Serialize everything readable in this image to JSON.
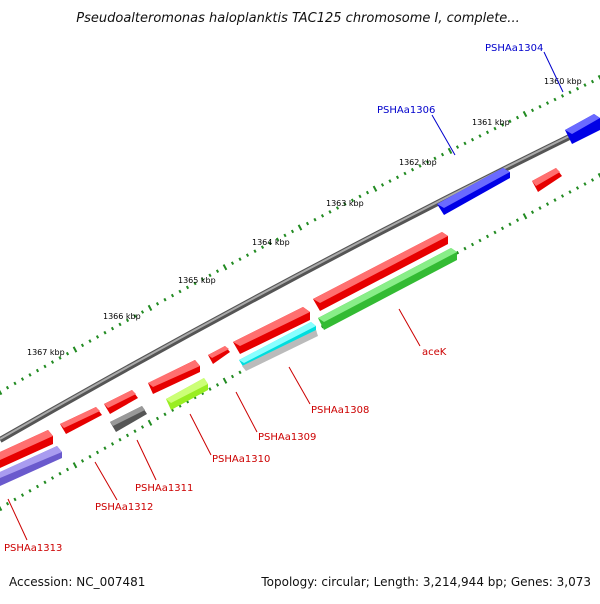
{
  "title": "Pseudoalteromonas haloplanktis TAC125 chromosome I, complete...",
  "footer": {
    "accession": "Accession: NC_007481",
    "stats": "Topology: circular; Length: 3,214,944 bp; Genes: 3,073"
  },
  "colors": {
    "backbone": "#888888",
    "ticks": "#228b22",
    "red_gene": "#e60000",
    "blue_gene": "#0000e6",
    "green_gene": "#33cc33",
    "cyan_gene": "#00e0e0",
    "lime_gene": "#aaff33",
    "gray_gene": "#666666",
    "slate_gene": "#6a5acd",
    "light_gene": "#cccccc"
  },
  "scale_labels": [
    "1360 kbp",
    "1361 kbp",
    "1362 kbp",
    "1363 kbp",
    "1364 kbp",
    "1365 kbp",
    "1366 kbp",
    "1367 kbp"
  ],
  "gene_labels": [
    {
      "text": "PSHAa1304",
      "color": "blue"
    },
    {
      "text": "PSHAa1306",
      "color": "blue"
    },
    {
      "text": "aceK",
      "color": "red"
    },
    {
      "text": "PSHAa1308",
      "color": "red"
    },
    {
      "text": "PSHAa1309",
      "color": "red"
    },
    {
      "text": "PSHAa1310",
      "color": "red"
    },
    {
      "text": "PSHAa1311",
      "color": "red"
    },
    {
      "text": "PSHAa1312",
      "color": "red"
    },
    {
      "text": "PSHAa1313",
      "color": "red"
    }
  ]
}
